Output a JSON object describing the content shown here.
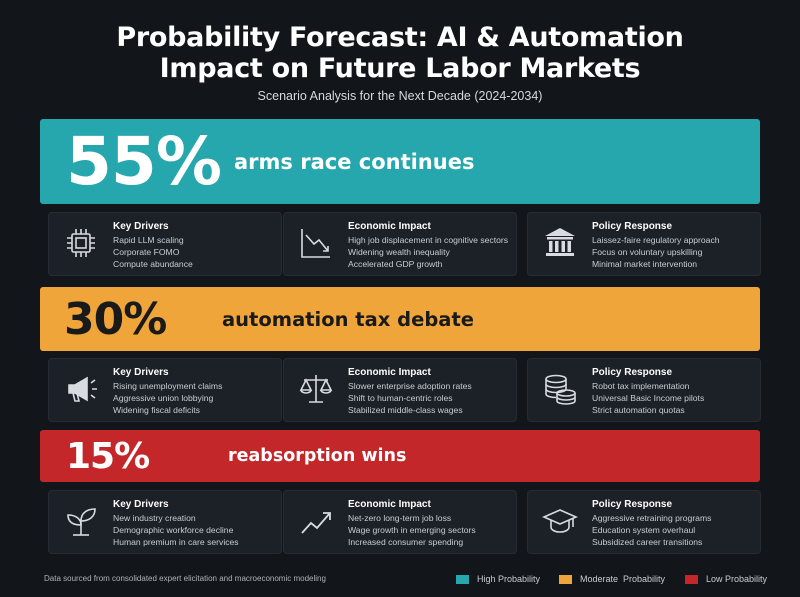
{
  "header": {
    "title_line1": "Probability Forecast: AI & Automation",
    "title_line2": "Impact on Future Labor Markets",
    "subtitle": "Scenario Analysis for the Next Decade (2024-2034)"
  },
  "scenarios": [
    {
      "percent": "55%",
      "label": "arms race continues",
      "color": "#26a6ad",
      "cards": [
        {
          "icon": "cpu-chip-icon",
          "heading": "Key Drivers",
          "lines": [
            "Rapid LLM scaling",
            "Corporate FOMO",
            "Compute abundance"
          ]
        },
        {
          "icon": "declining-chart-icon",
          "heading": "Economic Impact",
          "lines": [
            "High job displacement in cognitive sectors",
            "Widening wealth inequality",
            "Accelerated GDP growth"
          ]
        },
        {
          "icon": "government-building-icon",
          "heading": "Policy Response",
          "lines": [
            "Laissez-faire regulatory approach",
            "Focus on voluntary upskilling",
            "Minimal market intervention"
          ]
        }
      ]
    },
    {
      "percent": "30%",
      "label": "automation tax debate",
      "color": "#f0a53a",
      "cards": [
        {
          "icon": "megaphone-icon",
          "heading": "Key Drivers",
          "lines": [
            "Rising unemployment claims",
            "Aggressive union lobbying",
            "Widening fiscal deficits"
          ]
        },
        {
          "icon": "balance-scale-icon",
          "heading": "Economic Impact",
          "lines": [
            "Slower enterprise adoption rates",
            "Shift to human-centric roles",
            "Stabilized middle-class wages"
          ]
        },
        {
          "icon": "coin-stack-icon",
          "heading": "Policy Response",
          "lines": [
            "Robot tax implementation",
            "Universal Basic Income pilots",
            "Strict automation quotas"
          ]
        }
      ]
    },
    {
      "percent": "15%",
      "label": "reabsorption wins",
      "color": "#c4272a",
      "cards": [
        {
          "icon": "sprout-icon",
          "heading": "Key Drivers",
          "lines": [
            "New industry creation",
            "Demographic workforce decline",
            "Human premium in care services"
          ]
        },
        {
          "icon": "rising-trend-icon",
          "heading": "Economic Impact",
          "lines": [
            "Net-zero long-term job loss",
            "Wage growth in emerging sectors",
            "Increased consumer spending"
          ]
        },
        {
          "icon": "graduation-cap-icon",
          "heading": "Policy Response",
          "lines": [
            "Aggressive retraining programs",
            "Education system overhaul",
            "Subsidized career transitions"
          ]
        }
      ]
    }
  ],
  "footer": {
    "source": "Data sourced from consolidated expert elicitation and macroeconomic modeling",
    "legend": [
      {
        "label": "High Probability",
        "color": "#26a6ad"
      },
      {
        "label": "Moderate  Probability",
        "color": "#f0a53a"
      },
      {
        "label": "Low Probability",
        "color": "#c4272a"
      }
    ]
  }
}
